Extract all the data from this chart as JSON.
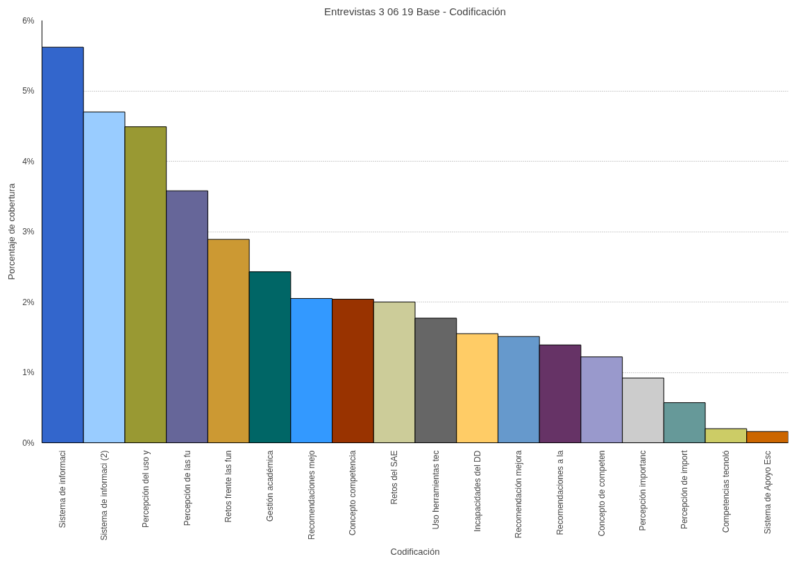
{
  "chart_data": {
    "type": "bar",
    "title": "Entrevistas 3 06 19 Base - Codificación",
    "xlabel": "Codificación",
    "ylabel": "Porcentaje de cobertura",
    "categories": [
      "Sistema de informaci",
      "Sistema de informaci (2)",
      "Percepción del uso y",
      "Percepción de las fu",
      "Retos frente las fun",
      "Gestión académica",
      "Recomendaciones mejo",
      "Concepto competencia",
      "Retos del SAE",
      "Uso herramientas tec",
      "Incapacidades del DD",
      "Recomendación mejora",
      "Recomendaciones a la",
      "Concepto de competen",
      "Percepción importanc",
      "Percepción de import",
      "Competencias tecnoló",
      "Sistema de Apoyo Esc"
    ],
    "values": [
      5.62,
      4.7,
      4.49,
      3.58,
      2.89,
      2.43,
      2.05,
      2.04,
      2.0,
      1.77,
      1.55,
      1.51,
      1.39,
      1.22,
      0.92,
      0.57,
      0.2,
      0.16
    ],
    "colors": [
      "#3366cc",
      "#99ccff",
      "#999933",
      "#666699",
      "#cc9933",
      "#006666",
      "#3399ff",
      "#993300",
      "#cccc99",
      "#666666",
      "#ffcc66",
      "#6699cc",
      "#663366",
      "#9999cc",
      "#cccccc",
      "#669999",
      "#cccc66",
      "#cc6600"
    ],
    "ylim": [
      0,
      6
    ],
    "yticks": [
      {
        "value": 0,
        "label": "0%"
      },
      {
        "value": 1,
        "label": "1%"
      },
      {
        "value": 2,
        "label": "2%"
      },
      {
        "value": 3,
        "label": "3%"
      },
      {
        "value": 4,
        "label": "4%"
      },
      {
        "value": 5,
        "label": "5%"
      },
      {
        "value": 6,
        "label": "6%"
      }
    ],
    "grid": "y"
  }
}
